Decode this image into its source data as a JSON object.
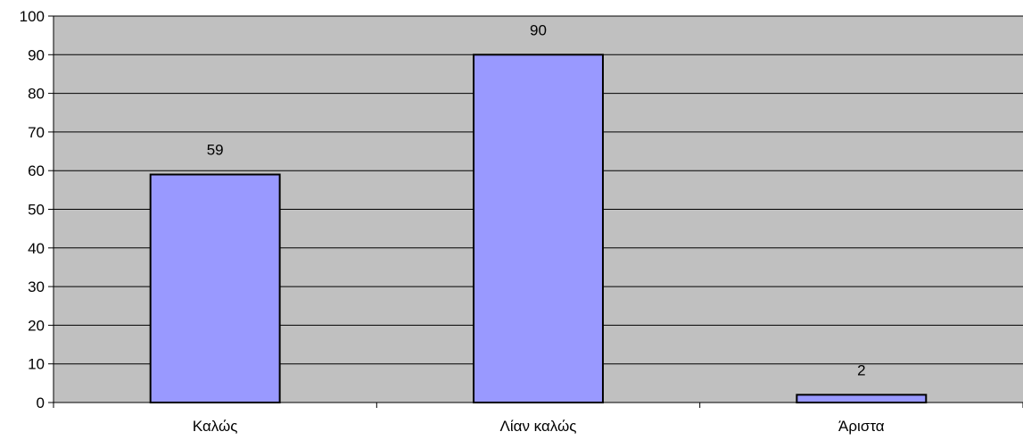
{
  "chart_data": {
    "type": "bar",
    "categories": [
      "Καλώς",
      "Λίαν καλώς",
      "Άριστα"
    ],
    "values": [
      59,
      90,
      2
    ],
    "data_labels": [
      "59",
      "90",
      "2"
    ],
    "ylim": [
      0,
      100
    ],
    "yticks": [
      0,
      10,
      20,
      30,
      40,
      50,
      60,
      70,
      80,
      90,
      100
    ],
    "ytick_labels": [
      "0",
      "10",
      "20",
      "30",
      "40",
      "50",
      "60",
      "70",
      "80",
      "90",
      "100"
    ],
    "grid": true,
    "legend": "none",
    "colors": {
      "plot_background": "#c0c0c0",
      "bar_fill": "#9999ff",
      "bar_stroke": "#000000",
      "gridline": "#000000"
    }
  }
}
